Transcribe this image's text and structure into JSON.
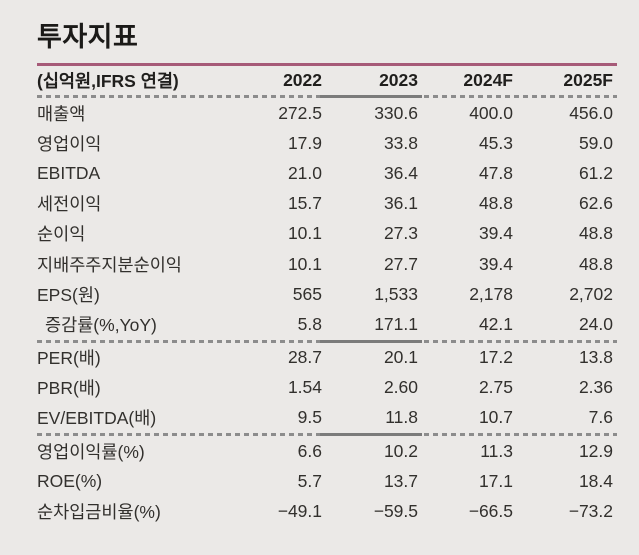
{
  "title": "투자지표",
  "colors": {
    "background": "#ebe9e7",
    "accent_line": "#a65a78",
    "dashed_rule": "#8c8c8c",
    "solid_rule_segment": "#7b7b7b",
    "text": "#32302d"
  },
  "table": {
    "unit_header": "(십억원,IFRS 연결)",
    "columns": [
      "2022",
      "2023",
      "2024F",
      "2025F"
    ],
    "groups": [
      {
        "rows": [
          {
            "label": "매출액",
            "indent": false,
            "values": [
              "272.5",
              "330.6",
              "400.0",
              "456.0"
            ]
          },
          {
            "label": "영업이익",
            "indent": false,
            "values": [
              "17.9",
              "33.8",
              "45.3",
              "59.0"
            ]
          },
          {
            "label": "EBITDA",
            "indent": false,
            "values": [
              "21.0",
              "36.4",
              "47.8",
              "61.2"
            ]
          },
          {
            "label": "세전이익",
            "indent": false,
            "values": [
              "15.7",
              "36.1",
              "48.8",
              "62.6"
            ]
          },
          {
            "label": "순이익",
            "indent": false,
            "values": [
              "10.1",
              "27.3",
              "39.4",
              "48.8"
            ]
          },
          {
            "label": "지배주주지분순이익",
            "indent": false,
            "values": [
              "10.1",
              "27.7",
              "39.4",
              "48.8"
            ]
          },
          {
            "label": "EPS(원)",
            "indent": false,
            "values": [
              "565",
              "1,533",
              "2,178",
              "2,702"
            ]
          },
          {
            "label": "증감률(%,YoY)",
            "indent": true,
            "values": [
              "5.8",
              "171.1",
              "42.1",
              "24.0"
            ]
          }
        ]
      },
      {
        "rows": [
          {
            "label": "PER(배)",
            "indent": false,
            "values": [
              "28.7",
              "20.1",
              "17.2",
              "13.8"
            ]
          },
          {
            "label": "PBR(배)",
            "indent": false,
            "values": [
              "1.54",
              "2.60",
              "2.75",
              "2.36"
            ]
          },
          {
            "label": "EV/EBITDA(배)",
            "indent": false,
            "values": [
              "9.5",
              "11.8",
              "10.7",
              "7.6"
            ]
          }
        ]
      },
      {
        "rows": [
          {
            "label": "영업이익률(%)",
            "indent": false,
            "values": [
              "6.6",
              "10.2",
              "11.3",
              "12.9"
            ]
          },
          {
            "label": "ROE(%)",
            "indent": false,
            "values": [
              "5.7",
              "13.7",
              "17.1",
              "18.4"
            ]
          },
          {
            "label": "순차입금비율(%)",
            "indent": false,
            "values": [
              "−49.1",
              "−59.5",
              "−66.5",
              "−73.2"
            ]
          }
        ]
      }
    ]
  }
}
